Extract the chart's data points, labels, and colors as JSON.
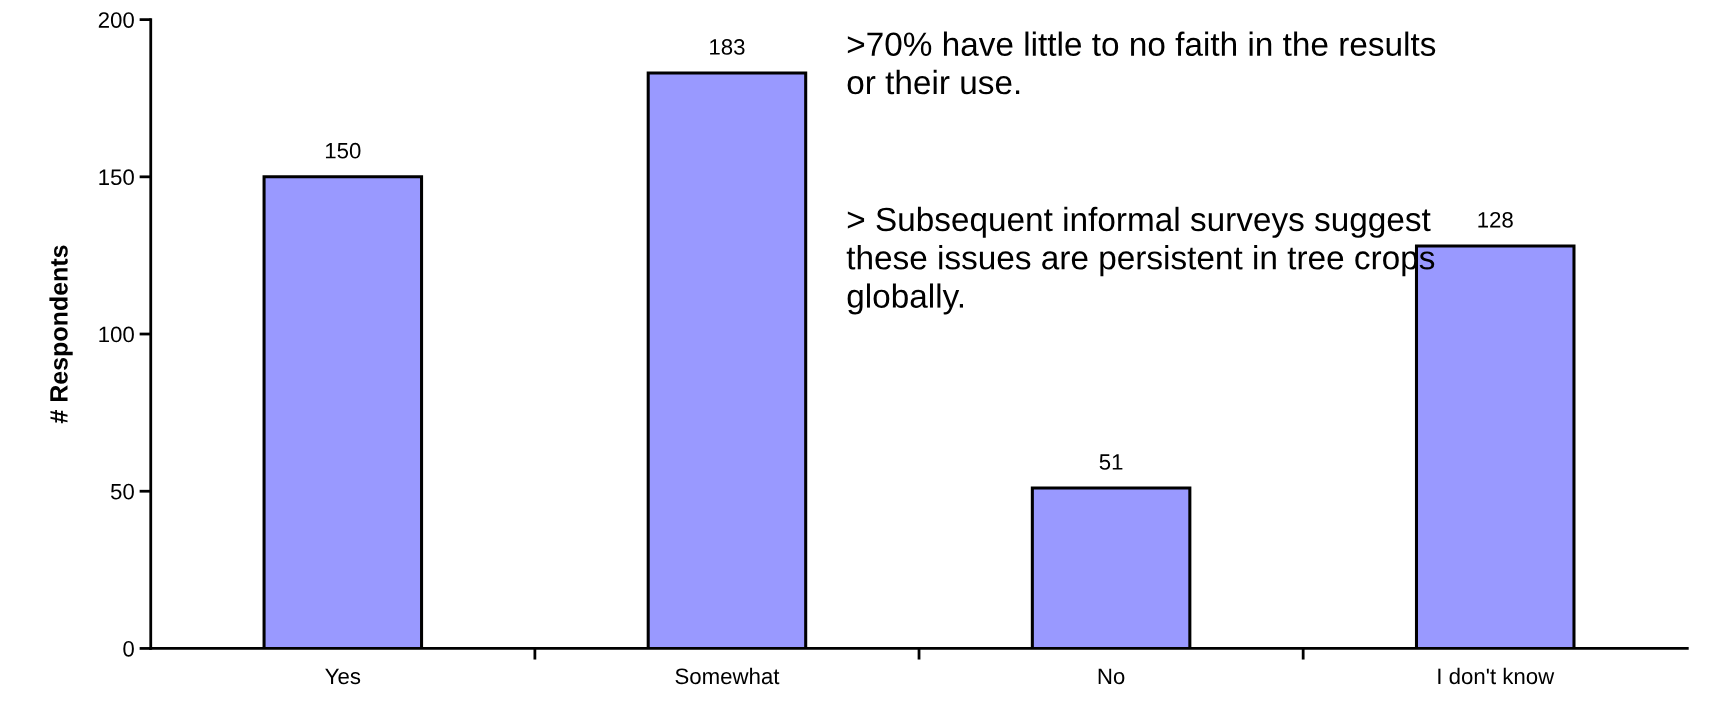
{
  "chart_data": {
    "type": "bar",
    "ylabel": "# Respondents",
    "categories": [
      "Yes",
      "Somewhat",
      "No",
      "I don't know"
    ],
    "values": [
      150,
      183,
      51,
      128
    ],
    "color": "#9999ff",
    "ylim": [
      0,
      200
    ],
    "yticks": [
      0,
      50,
      100,
      150,
      200
    ],
    "grid": false,
    "data_labels": true,
    "annotations": [
      ">70% have little to no faith in the results or their use.",
      "> Subsequent informal surveys suggest these issues are persistent in tree crops globally."
    ]
  }
}
